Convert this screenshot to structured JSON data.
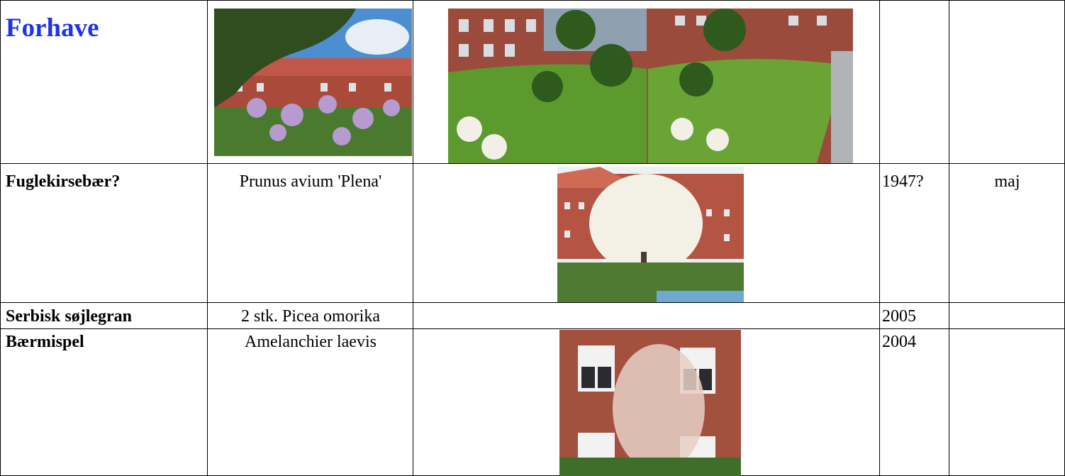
{
  "table": {
    "rows": [
      {
        "name": "Forhave"
      },
      {
        "name": "Fuglekirsebær?",
        "latin": "Prunus avium 'Plena'",
        "year": "1947?",
        "month": "maj"
      },
      {
        "name": "Serbisk søjlegran",
        "latin": "2 stk. Picea omorika",
        "year": "2005"
      },
      {
        "name": "Bærmispel",
        "latin": "Amelanchier laevis",
        "year": "2004"
      }
    ]
  }
}
